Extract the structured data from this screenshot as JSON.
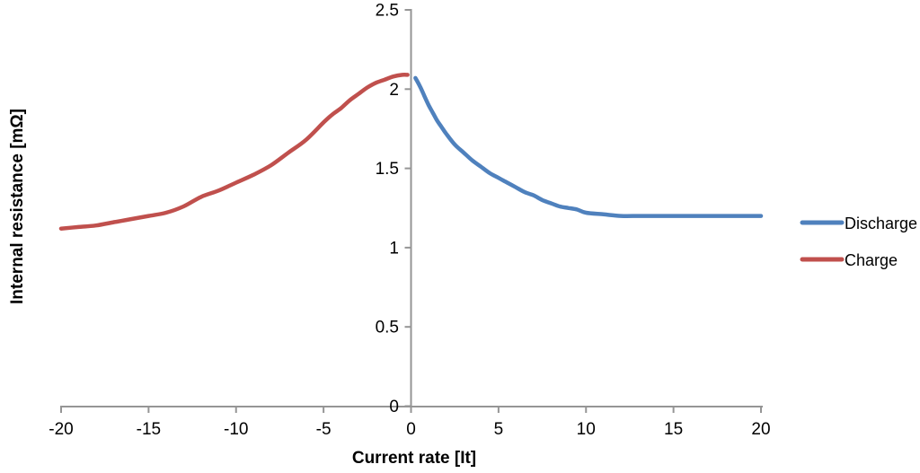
{
  "chart_data": {
    "type": "line",
    "title": "",
    "xlabel": "Current rate [It]",
    "ylabel": "Internal resistance [mΩ]",
    "xlim": [
      -20,
      20
    ],
    "ylim": [
      0,
      2.5
    ],
    "x_ticks": [
      -20,
      -15,
      -10,
      -5,
      0,
      5,
      10,
      15,
      20
    ],
    "y_ticks": [
      0,
      0.5,
      1,
      1.5,
      2,
      2.5
    ],
    "grid": false,
    "legend_position": "right",
    "axis_color": "#959595",
    "series": [
      {
        "name": "Discharge",
        "color": "#4F81BD",
        "points": [
          [
            0.25,
            2.07
          ],
          [
            0.5,
            2.02
          ],
          [
            0.75,
            1.96
          ],
          [
            1,
            1.9
          ],
          [
            1.25,
            1.85
          ],
          [
            1.5,
            1.8
          ],
          [
            1.75,
            1.76
          ],
          [
            2,
            1.72
          ],
          [
            2.5,
            1.65
          ],
          [
            3,
            1.6
          ],
          [
            3.5,
            1.55
          ],
          [
            4,
            1.51
          ],
          [
            4.5,
            1.47
          ],
          [
            5,
            1.44
          ],
          [
            5.5,
            1.41
          ],
          [
            6,
            1.38
          ],
          [
            6.5,
            1.35
          ],
          [
            7,
            1.33
          ],
          [
            7.5,
            1.3
          ],
          [
            8,
            1.28
          ],
          [
            8.5,
            1.26
          ],
          [
            9,
            1.25
          ],
          [
            9.5,
            1.24
          ],
          [
            10,
            1.22
          ],
          [
            11,
            1.21
          ],
          [
            12,
            1.2
          ],
          [
            13,
            1.2
          ],
          [
            14,
            1.2
          ],
          [
            15,
            1.2
          ],
          [
            16,
            1.2
          ],
          [
            17,
            1.2
          ],
          [
            18,
            1.2
          ],
          [
            19,
            1.2
          ],
          [
            20,
            1.2
          ]
        ]
      },
      {
        "name": "Charge",
        "color": "#C0504D",
        "points": [
          [
            -20,
            1.12
          ],
          [
            -19,
            1.13
          ],
          [
            -18,
            1.14
          ],
          [
            -17,
            1.16
          ],
          [
            -16,
            1.18
          ],
          [
            -15,
            1.2
          ],
          [
            -14,
            1.22
          ],
          [
            -13,
            1.26
          ],
          [
            -12,
            1.32
          ],
          [
            -11,
            1.36
          ],
          [
            -10,
            1.41
          ],
          [
            -9,
            1.46
          ],
          [
            -8,
            1.52
          ],
          [
            -7,
            1.6
          ],
          [
            -6,
            1.68
          ],
          [
            -5,
            1.79
          ],
          [
            -4.5,
            1.84
          ],
          [
            -4,
            1.88
          ],
          [
            -3.5,
            1.93
          ],
          [
            -3,
            1.97
          ],
          [
            -2.5,
            2.01
          ],
          [
            -2,
            2.04
          ],
          [
            -1.5,
            2.06
          ],
          [
            -1,
            2.08
          ],
          [
            -0.5,
            2.09
          ],
          [
            -0.2,
            2.09
          ]
        ]
      }
    ]
  }
}
